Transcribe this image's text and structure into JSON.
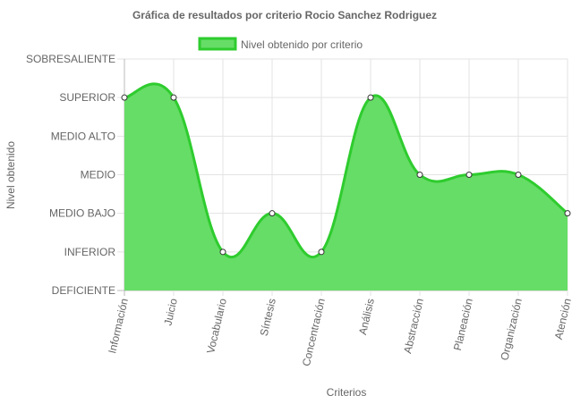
{
  "chart_data": {
    "type": "area",
    "title": "Gráfica de resultados por criterio Rocio Sanchez Rodriguez",
    "xlabel": "Criterios",
    "ylabel": "Nivel obtenido",
    "legend_position": "top",
    "grid": true,
    "levels": [
      "DEFICIENTE",
      "INFERIOR",
      "MEDIO BAJO",
      "MEDIO",
      "MEDIO ALTO",
      "SUPERIOR",
      "SOBRESALIENTE"
    ],
    "categories": [
      "Información",
      "Juicio",
      "Vocabulario",
      "Síntesis",
      "Concentración",
      "Análisis",
      "Abstracción",
      "Planeación",
      "Organización",
      "Atención"
    ],
    "ylim": [
      0,
      6
    ],
    "series": [
      {
        "name": "Nivel obtenido por criterio",
        "values": [
          5,
          5,
          1,
          2,
          1,
          5,
          3,
          3,
          3,
          2
        ],
        "color": "#2ecc2e",
        "fill": "#66dd66"
      }
    ]
  }
}
